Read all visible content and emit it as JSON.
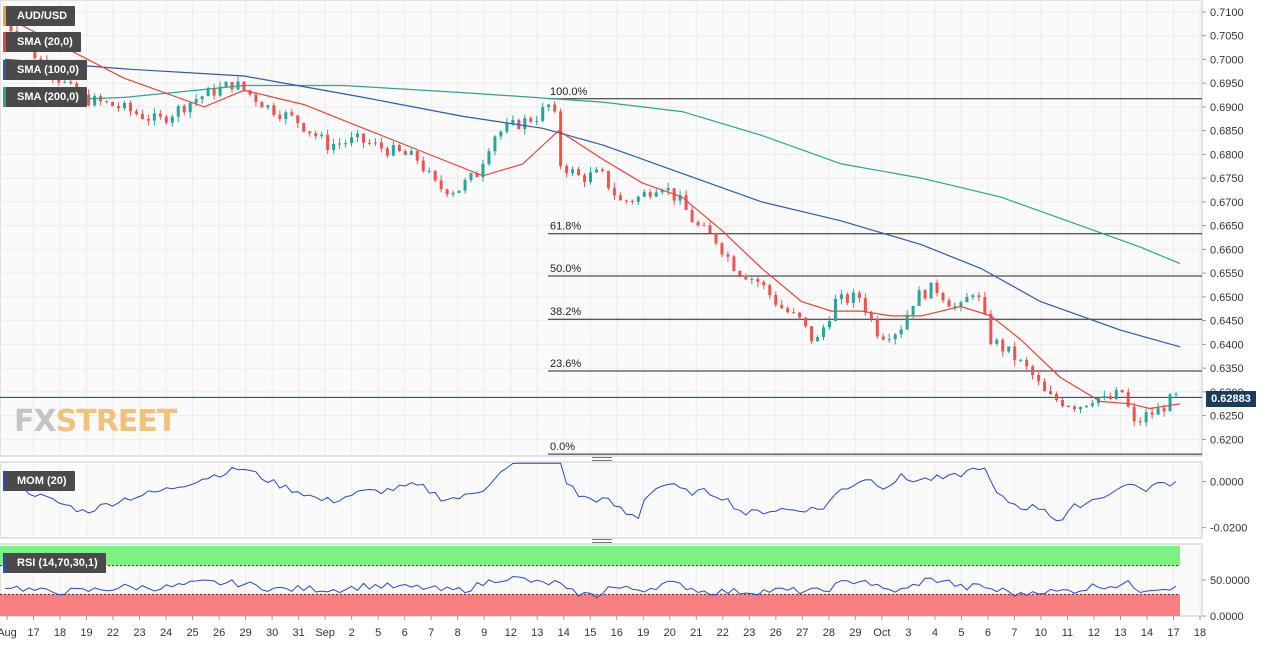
{
  "symbol": "AUD/USD",
  "indicators": {
    "sma20": "SMA (20,0)",
    "sma100": "SMA (100,0)",
    "sma200": "SMA (200,0)",
    "mom": "MOM (20)",
    "rsi": "RSI (14,70,30,1)"
  },
  "watermark": {
    "fx": "FX",
    "street": "STREET"
  },
  "colors": {
    "bull": "#26a69a",
    "bear": "#ef5350",
    "sma20": "#e8433a",
    "sma100": "#2e5aa8",
    "sma200": "#2ca58d",
    "mom_line": "#2949c4",
    "rsi_line": "#2949c4",
    "rsi_overbought_fill": "#7ef27e",
    "rsi_oversold_fill": "#f77f7f",
    "price_tag": "#1a3b5c"
  },
  "current_price": "0.62883",
  "chart_data": {
    "type": "candlestick",
    "price_axis": {
      "ylim": [
        0.6165,
        0.7125
      ],
      "ticks": [
        "0.7100",
        "0.7050",
        "0.7000",
        "0.6950",
        "0.6900",
        "0.6850",
        "0.6800",
        "0.6750",
        "0.6700",
        "0.6650",
        "0.6600",
        "0.6550",
        "0.6500",
        "0.6450",
        "0.6400",
        "0.6350",
        "0.6300",
        "0.6250",
        "0.6200"
      ]
    },
    "x_labels": [
      "Aug",
      "17",
      "18",
      "19",
      "22",
      "23",
      "24",
      "25",
      "26",
      "29",
      "30",
      "31",
      "Sep",
      "2",
      "5",
      "6",
      "7",
      "8",
      "9",
      "12",
      "13",
      "14",
      "15",
      "16",
      "19",
      "20",
      "21",
      "22",
      "23",
      "26",
      "27",
      "28",
      "29",
      "Oct",
      "3",
      "4",
      "5",
      "6",
      "7",
      "10",
      "11",
      "12",
      "13",
      "14",
      "17",
      "18"
    ],
    "fibonacci": [
      {
        "label": "100.0%",
        "price": 0.6917
      },
      {
        "label": "61.8%",
        "price": 0.6633
      },
      {
        "label": "50.0%",
        "price": 0.6544
      },
      {
        "label": "38.2%",
        "price": 0.6453
      },
      {
        "label": "23.6%",
        "price": 0.6344
      },
      {
        "label": "0.0%",
        "price": 0.6169
      }
    ],
    "price_keypoints": [
      [
        0,
        0.7095
      ],
      [
        20,
        0.7
      ],
      [
        40,
        0.692
      ],
      [
        60,
        0.69
      ],
      [
        80,
        0.687
      ],
      [
        100,
        0.692
      ],
      [
        118,
        0.695
      ],
      [
        135,
        0.69
      ],
      [
        150,
        0.687
      ],
      [
        165,
        0.682
      ],
      [
        180,
        0.683
      ],
      [
        195,
        0.681
      ],
      [
        210,
        0.679
      ],
      [
        220,
        0.673
      ],
      [
        230,
        0.6725
      ],
      [
        240,
        0.676
      ],
      [
        248,
        0.684
      ],
      [
        258,
        0.686
      ],
      [
        270,
        0.688
      ],
      [
        278,
        0.691
      ],
      [
        282,
        0.678
      ],
      [
        292,
        0.675
      ],
      [
        302,
        0.676
      ],
      [
        312,
        0.67
      ],
      [
        322,
        0.671
      ],
      [
        332,
        0.674
      ],
      [
        342,
        0.67
      ],
      [
        350,
        0.665
      ],
      [
        360,
        0.662
      ],
      [
        370,
        0.656
      ],
      [
        382,
        0.653
      ],
      [
        392,
        0.648
      ],
      [
        402,
        0.645
      ],
      [
        410,
        0.64
      ],
      [
        420,
        0.649
      ],
      [
        432,
        0.65
      ],
      [
        442,
        0.642
      ],
      [
        452,
        0.643
      ],
      [
        460,
        0.65
      ],
      [
        470,
        0.652
      ],
      [
        482,
        0.647
      ],
      [
        490,
        0.652
      ],
      [
        498,
        0.641
      ],
      [
        508,
        0.638
      ],
      [
        518,
        0.634
      ],
      [
        526,
        0.629
      ],
      [
        534,
        0.628
      ],
      [
        542,
        0.627
      ],
      [
        550,
        0.629
      ],
      [
        556,
        0.628
      ],
      [
        564,
        0.63
      ],
      [
        570,
        0.623
      ],
      [
        576,
        0.625
      ],
      [
        582,
        0.626
      ],
      [
        590,
        0.6288
      ]
    ],
    "sma20": [
      [
        0,
        0.709
      ],
      [
        60,
        0.696
      ],
      [
        100,
        0.69
      ],
      [
        120,
        0.6935
      ],
      [
        150,
        0.6905
      ],
      [
        180,
        0.6855
      ],
      [
        210,
        0.6805
      ],
      [
        240,
        0.6755
      ],
      [
        260,
        0.678
      ],
      [
        278,
        0.685
      ],
      [
        300,
        0.679
      ],
      [
        320,
        0.674
      ],
      [
        340,
        0.671
      ],
      [
        360,
        0.664
      ],
      [
        380,
        0.656
      ],
      [
        400,
        0.649
      ],
      [
        415,
        0.647
      ],
      [
        430,
        0.647
      ],
      [
        445,
        0.646
      ],
      [
        460,
        0.646
      ],
      [
        480,
        0.648
      ],
      [
        495,
        0.646
      ],
      [
        510,
        0.641
      ],
      [
        530,
        0.633
      ],
      [
        550,
        0.628
      ],
      [
        565,
        0.6275
      ],
      [
        575,
        0.6265
      ],
      [
        590,
        0.6275
      ]
    ],
    "sma100": [
      [
        0,
        0.7
      ],
      [
        60,
        0.698
      ],
      [
        120,
        0.6965
      ],
      [
        180,
        0.692
      ],
      [
        230,
        0.688
      ],
      [
        270,
        0.6855
      ],
      [
        300,
        0.682
      ],
      [
        340,
        0.676
      ],
      [
        380,
        0.67
      ],
      [
        420,
        0.666
      ],
      [
        460,
        0.661
      ],
      [
        490,
        0.656
      ],
      [
        520,
        0.649
      ],
      [
        560,
        0.643
      ],
      [
        590,
        0.6395
      ]
    ],
    "sma200": [
      [
        0,
        0.691
      ],
      [
        60,
        0.692
      ],
      [
        120,
        0.6945
      ],
      [
        170,
        0.6945
      ],
      [
        230,
        0.693
      ],
      [
        300,
        0.691
      ],
      [
        340,
        0.689
      ],
      [
        380,
        0.684
      ],
      [
        420,
        0.678
      ],
      [
        460,
        0.675
      ],
      [
        500,
        0.671
      ],
      [
        540,
        0.665
      ],
      [
        570,
        0.6605
      ],
      [
        590,
        0.657
      ]
    ],
    "mom": {
      "ylim": [
        -0.0245,
        0.0085
      ],
      "ticks": [
        "0.0000",
        "-0.0200"
      ]
    },
    "rsi": {
      "ylim": [
        0,
        100
      ],
      "ticks": [
        "50.0000",
        "0.0000"
      ],
      "overbought": 70,
      "oversold": 30
    }
  }
}
